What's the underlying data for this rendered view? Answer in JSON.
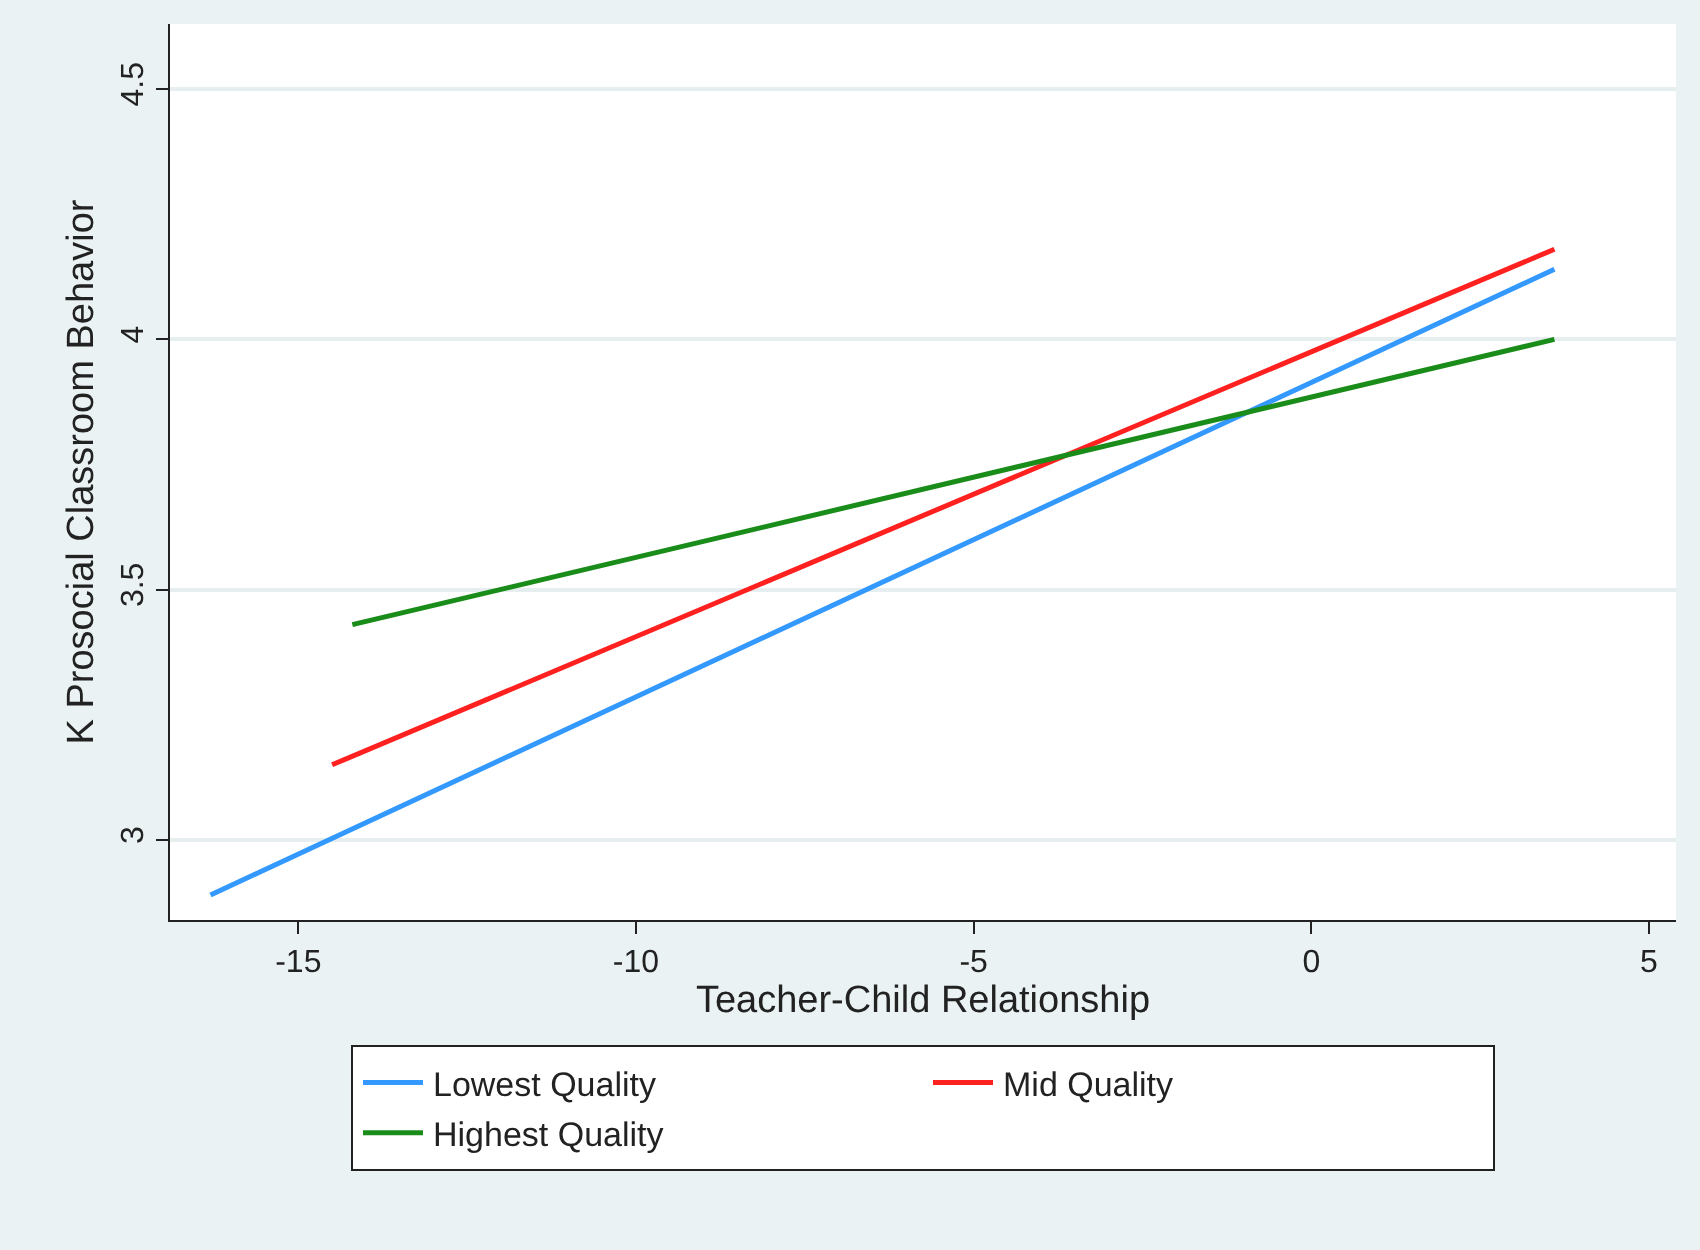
{
  "chart_data": {
    "type": "line",
    "xlabel": "Teacher-Child Relationship",
    "ylabel": "K Prosocial Classroom Behavior",
    "series": [
      {
        "name": "Lowest Quality",
        "color": "#3399ff",
        "x": [
          -16.3,
          3.6
        ],
        "values": [
          2.89,
          4.14
        ]
      },
      {
        "name": "Mid Quality",
        "color": "#ff2020",
        "x": [
          -14.5,
          3.6
        ],
        "values": [
          3.15,
          4.18
        ]
      },
      {
        "name": "Highest Quality",
        "color": "#1a8c1a",
        "x": [
          -14.2,
          3.6
        ],
        "values": [
          3.43,
          4.0
        ]
      }
    ],
    "xlim": [
      -16.9,
      5.4
    ],
    "ylim": [
      2.84,
      4.63
    ],
    "xticks": [
      -15,
      -10,
      -5,
      0,
      5
    ],
    "yticks": [
      3,
      3.5,
      4,
      4.5
    ],
    "grid": "y",
    "legend": "bottom",
    "marker": "none",
    "line_style": "solid"
  }
}
